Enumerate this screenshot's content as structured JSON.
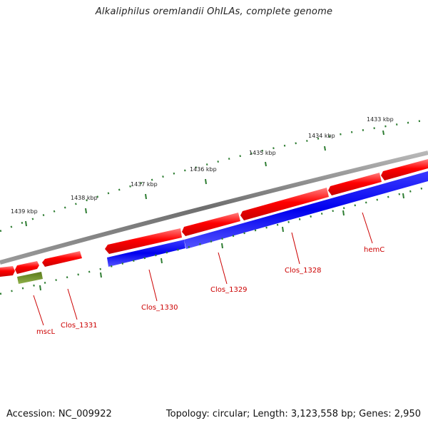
{
  "header": {
    "title": "Alkaliphilus oremlandii OhILAs, complete genome"
  },
  "footer": {
    "accession": "Accession: NC_009922",
    "summary": "Topology: circular; Length: 3,123,558 bp; Genes: 2,950"
  },
  "colors": {
    "backbone": "#7f7f7f",
    "forward_gene": "#ff0000",
    "reverse_gene": "#0000ff",
    "other_feature": "#6b8e23",
    "tick": "#2e7d32",
    "label_line": "#cc0000",
    "label_text": "#cc0000"
  },
  "kbp_markers": [
    {
      "label": "1433 kbp"
    },
    {
      "label": "1434 kbp"
    },
    {
      "label": "1435 kbp"
    },
    {
      "label": "1436 kbp"
    },
    {
      "label": "1437 kbp"
    },
    {
      "label": "1438 kbp"
    },
    {
      "label": "1439 kbp"
    }
  ],
  "gene_labels": [
    {
      "name": "hemC"
    },
    {
      "name": "Clos_1328"
    },
    {
      "name": "Clos_1329"
    },
    {
      "name": "Clos_1330"
    },
    {
      "name": "Clos_1331"
    },
    {
      "name": "mscL"
    }
  ]
}
